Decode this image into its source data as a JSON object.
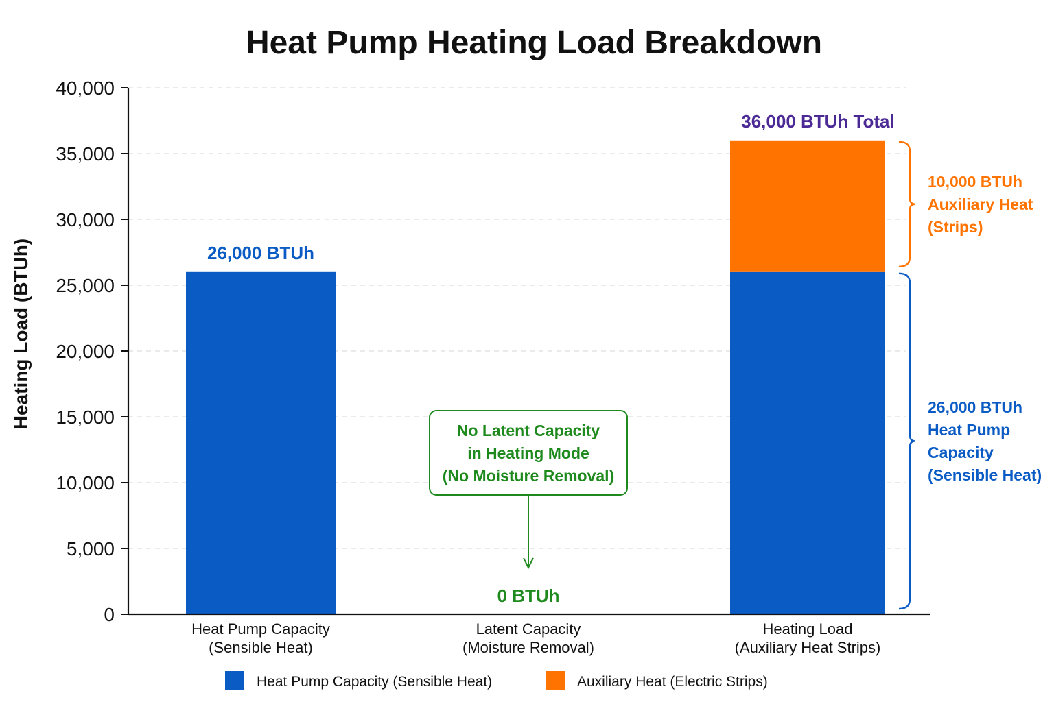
{
  "chart_data": {
    "type": "bar",
    "stacked": true,
    "title": "Heat Pump Heating Load Breakdown",
    "ylabel": "Heating Load (BTUh)",
    "xlabel": "",
    "ylim": [
      0,
      40000
    ],
    "yticks": [
      0,
      5000,
      10000,
      15000,
      20000,
      25000,
      30000,
      35000,
      40000
    ],
    "ytick_labels": [
      "0",
      "5,000",
      "10,000",
      "15,000",
      "20,000",
      "25,000",
      "30,000",
      "35,000",
      "40,000"
    ],
    "grid": true,
    "categories": [
      [
        "Heat Pump Capacity",
        "(Sensible Heat)"
      ],
      [
        "Latent Capacity",
        "(Moisture Removal)"
      ],
      [
        "Heating Load",
        "(Auxiliary Heat Strips)"
      ]
    ],
    "series": [
      {
        "name": "Heat Pump Capacity (Sensible Heat)",
        "color": "#0a5bc4",
        "values": [
          26000,
          0,
          26000
        ]
      },
      {
        "name": "Auxiliary Heat (Electric Strips)",
        "color": "#ff7300",
        "values": [
          0,
          0,
          10000
        ]
      }
    ],
    "data_labels": [
      {
        "category": 0,
        "value": 26000,
        "text": "26,000 BTUh",
        "color": "#0a5bc4"
      },
      {
        "category": 1,
        "value": 0,
        "text": "0 BTUh",
        "color": "#1e8a1e"
      },
      {
        "category": 2,
        "value": 36000,
        "text": "36,000 BTUh Total",
        "color": "#4b2a96"
      }
    ],
    "annotations": [
      {
        "type": "brace",
        "from": 26000,
        "to": 36000,
        "lines": [
          "10,000 BTUh",
          "Auxiliary Heat",
          "(Strips)"
        ],
        "color": "#ff7300"
      },
      {
        "type": "brace",
        "from": 0,
        "to": 26000,
        "lines": [
          "26,000 BTUh",
          "Heat Pump",
          "Capacity",
          "(Sensible Heat)"
        ],
        "color": "#0a5bc4"
      },
      {
        "type": "callout",
        "category": 1,
        "lines": [
          "No Latent Capacity",
          "in Heating Mode",
          "(No Moisture Removal)"
        ],
        "color": "#1e8a1e"
      }
    ],
    "legend": {
      "placement": "bottom",
      "entries": [
        {
          "label": "Heat Pump Capacity (Sensible Heat)",
          "color": "#0a5bc4"
        },
        {
          "label": "Auxiliary Heat (Electric Strips)",
          "color": "#ff7300"
        }
      ]
    }
  }
}
